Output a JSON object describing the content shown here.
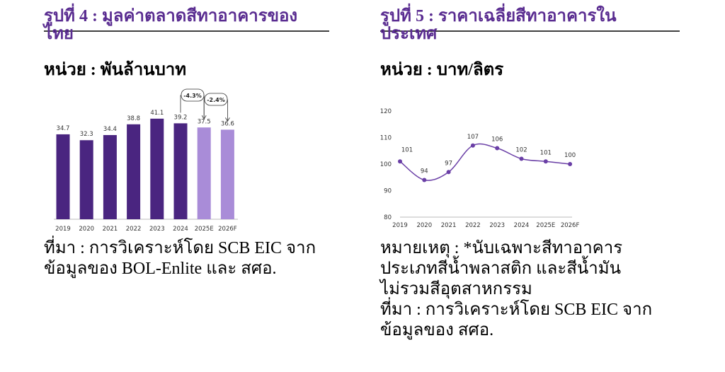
{
  "chart_data": [
    {
      "type": "bar",
      "title": [
        "รูปที่ 4 : มูลค่าตลาดสีทาอาคารของ",
        "ไทย"
      ],
      "subtitle": "หน่วย : พันล้านบาท",
      "categories": [
        "2019",
        "2020",
        "2021",
        "2022",
        "2023",
        "2024",
        "2025E",
        "2026F"
      ],
      "values": [
        34.7,
        32.3,
        34.4,
        38.8,
        41.1,
        39.2,
        37.5,
        36.6
      ],
      "colors": [
        "#4a2580",
        "#4a2580",
        "#4a2580",
        "#4a2580",
        "#4a2580",
        "#4a2580",
        "#a98cd8",
        "#a98cd8"
      ],
      "annotations": [
        "-4.3%",
        "-2.4%"
      ],
      "footnote": [
        "ที่มา : การวิเคราะห์โดย SCB EIC จาก",
        "ข้อมูลของ BOL-Enlite และ สศอ."
      ]
    },
    {
      "type": "line",
      "title": [
        "รูปที่ 5 : ราคาเฉลี่ยสีทาอาคารใน",
        "ประเทศ"
      ],
      "subtitle": "หน่วย : บาท/ลิตร",
      "categories": [
        "2019",
        "2020",
        "2021",
        "2022",
        "2023",
        "2024",
        "2025E",
        "2026F"
      ],
      "values": [
        101,
        94,
        97,
        107,
        106,
        102,
        101,
        100
      ],
      "color": "#6a3fa6",
      "ylim": [
        80,
        120
      ],
      "yticks": [
        80,
        90,
        100,
        110,
        120
      ],
      "footnote": [
        "หมายเหตุ : *นับเฉพาะสีทาอาคาร",
        "ประเภทสีน้ำพลาสติก และสีน้ำมัน",
        "ไม่รวมสีอุตสาหกรรม",
        "ที่มา : การวิเคราะห์โดย SCB EIC จาก",
        "ข้อมูลของ สศอ."
      ]
    }
  ]
}
